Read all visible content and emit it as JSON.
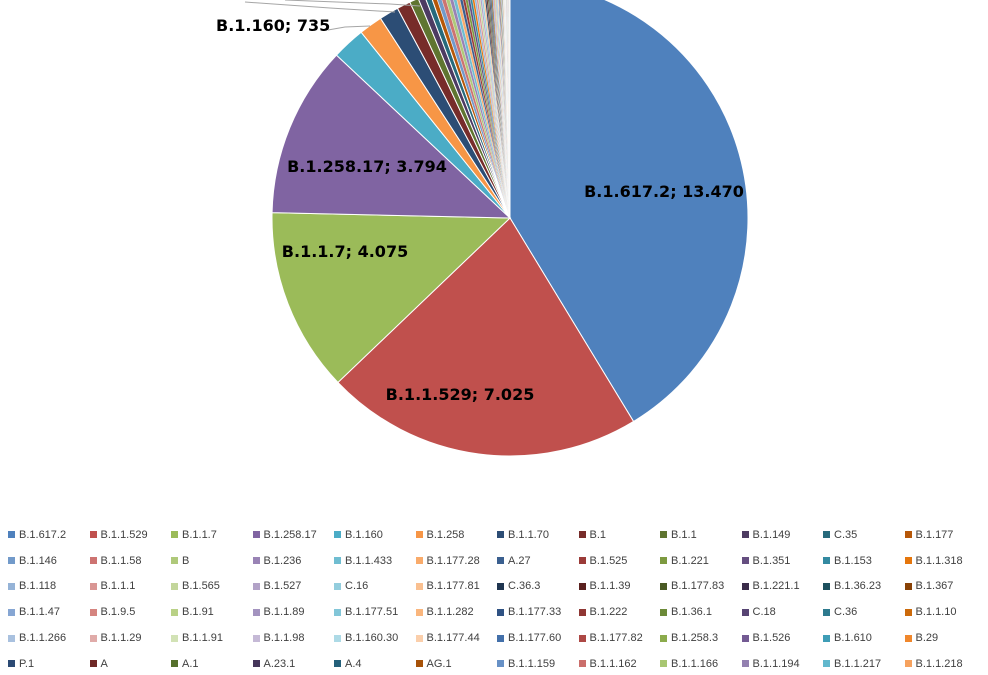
{
  "chart_data": {
    "type": "pie",
    "slices": [
      {
        "name": "B.1.617.2",
        "value": 13470,
        "color": "#4F81BD"
      },
      {
        "name": "B.1.1.529",
        "value": 7025,
        "color": "#C0504D"
      },
      {
        "name": "B.1.1.7",
        "value": 4075,
        "color": "#9BBB59"
      },
      {
        "name": "B.1.258.17",
        "value": 3794,
        "color": "#8064A2"
      },
      {
        "name": "B.1.160",
        "value": 735,
        "color": "#4BACC6"
      },
      {
        "name": "B.1.258",
        "value": 520,
        "color": "#F79646"
      },
      {
        "name": "B.1.1.70",
        "value": 430,
        "color": "#2C4D75"
      },
      {
        "name": "B.1",
        "value": 300,
        "color": "#772C2A"
      },
      {
        "name": "B.1.1",
        "value": 200,
        "color": "#5F7530"
      },
      {
        "name": "B.1.149",
        "value": 150,
        "color": "#4D3B62"
      },
      {
        "name": "C.35",
        "value": 130,
        "color": "#276A7C"
      },
      {
        "name": "B.1.177",
        "value": 110,
        "color": "#B65708"
      },
      {
        "name": "B.1.146",
        "value": 95,
        "color": "#729ACA"
      },
      {
        "name": "B.1.1.58",
        "value": 90,
        "color": "#CD7371"
      },
      {
        "name": "B",
        "value": 85,
        "color": "#AFC97A"
      },
      {
        "name": "B.1.236",
        "value": 80,
        "color": "#9983B5"
      },
      {
        "name": "B.1.1.433",
        "value": 75,
        "color": "#6FBDD1"
      },
      {
        "name": "B.1.177.28",
        "value": 70,
        "color": "#F9AB6B"
      },
      {
        "name": "A.27",
        "value": 65,
        "color": "#3A5F8F"
      },
      {
        "name": "B.1.525",
        "value": 60,
        "color": "#9B3B38"
      },
      {
        "name": "B.1.221",
        "value": 57,
        "color": "#7D9A40"
      },
      {
        "name": "B.1.351",
        "value": 54,
        "color": "#654E80"
      },
      {
        "name": "B.1.153",
        "value": 51,
        "color": "#338AA1"
      },
      {
        "name": "B.1.1.318",
        "value": 48,
        "color": "#E5760C"
      },
      {
        "name": "B.1.118",
        "value": 46,
        "color": "#95B3D7"
      },
      {
        "name": "B.1.1.1",
        "value": 44,
        "color": "#D99694"
      },
      {
        "name": "B.1.565",
        "value": 42,
        "color": "#C3D69B"
      },
      {
        "name": "B.1.527",
        "value": 40,
        "color": "#B2A2C7"
      },
      {
        "name": "C.16",
        "value": 38,
        "color": "#93CDDD"
      },
      {
        "name": "B.1.177.81",
        "value": 36,
        "color": "#FAC090"
      },
      {
        "name": "C.36.3",
        "value": 34,
        "color": "#1F3550"
      },
      {
        "name": "B.1.1.39",
        "value": 32,
        "color": "#5A211F"
      },
      {
        "name": "B.1.177.83",
        "value": 30,
        "color": "#4A5A24"
      },
      {
        "name": "B.1.221.1",
        "value": 29,
        "color": "#3A2C4A"
      },
      {
        "name": "B.1.36.23",
        "value": 28,
        "color": "#1D505E"
      },
      {
        "name": "B.1.367",
        "value": 27,
        "color": "#894206"
      },
      {
        "name": "B.1.1.47",
        "value": 26,
        "color": "#86A6D3"
      },
      {
        "name": "B.1.9.5",
        "value": 25,
        "color": "#D5847F"
      },
      {
        "name": "B.1.91",
        "value": 24,
        "color": "#B9D186"
      },
      {
        "name": "B.1.1.89",
        "value": 23,
        "color": "#A393BF"
      },
      {
        "name": "B.1.177.51",
        "value": 22,
        "color": "#82C6D8"
      },
      {
        "name": "B.1.1.282",
        "value": 21,
        "color": "#FAB67D"
      },
      {
        "name": "B.1.177.33",
        "value": 20,
        "color": "#2F5283"
      },
      {
        "name": "B.1.222",
        "value": 19,
        "color": "#8F3633"
      },
      {
        "name": "B.1.36.1",
        "value": 18,
        "color": "#6C8A38"
      },
      {
        "name": "C.18",
        "value": 17,
        "color": "#574473"
      },
      {
        "name": "C.36",
        "value": 16,
        "color": "#2D7A8E"
      },
      {
        "name": "B.1.1.10",
        "value": 15,
        "color": "#CC6A0A"
      },
      {
        "name": "B.1.1.266",
        "value": 14,
        "color": "#A9C1DF"
      },
      {
        "name": "B.1.1.29",
        "value": 13,
        "color": "#E0ABA9"
      },
      {
        "name": "B.1.1.91",
        "value": 12,
        "color": "#D2E2B5"
      },
      {
        "name": "B.1.1.98",
        "value": 11,
        "color": "#C5B9D6"
      },
      {
        "name": "B.1.160.30",
        "value": 10,
        "color": "#ADDAE6"
      },
      {
        "name": "B.1.177.44",
        "value": 10,
        "color": "#FBCFAB"
      },
      {
        "name": "B.1.177.60",
        "value": 9,
        "color": "#4370AA"
      },
      {
        "name": "B.1.177.82",
        "value": 9,
        "color": "#AD4845"
      },
      {
        "name": "B.1.258.3",
        "value": 8,
        "color": "#8CAB4C"
      },
      {
        "name": "B.1.526",
        "value": 8,
        "color": "#735A93"
      },
      {
        "name": "B.1.610",
        "value": 7,
        "color": "#3F9DB6"
      },
      {
        "name": "B.29",
        "value": 7,
        "color": "#F0872C"
      },
      {
        "name": "P.1",
        "value": 6,
        "color": "#2B4A74"
      },
      {
        "name": "A",
        "value": 6,
        "color": "#6E2826"
      },
      {
        "name": "A.1",
        "value": 5,
        "color": "#56702C"
      },
      {
        "name": "A.23.1",
        "value": 5,
        "color": "#45365A"
      },
      {
        "name": "A.4",
        "value": 4,
        "color": "#24607A"
      },
      {
        "name": "AG.1",
        "value": 4,
        "color": "#A75208"
      },
      {
        "name": "B.1.1.159",
        "value": 3,
        "color": "#6791C6"
      },
      {
        "name": "B.1.1.162",
        "value": 3,
        "color": "#CB6E6B"
      },
      {
        "name": "B.1.1.166",
        "value": 3,
        "color": "#A8C671"
      },
      {
        "name": "B.1.1.194",
        "value": 2,
        "color": "#9380B0"
      },
      {
        "name": "B.1.1.217",
        "value": 2,
        "color": "#62B8CD"
      },
      {
        "name": "B.1.1.218",
        "value": 2,
        "color": "#F6A25E"
      }
    ],
    "data_labels": [
      {
        "text": "B.1.617.2; 13.470",
        "slice": "B.1.617.2"
      },
      {
        "text": "B.1.1.529; 7.025",
        "slice": "B.1.1.529"
      },
      {
        "text": "B.1.1.7; 4.075",
        "slice": "B.1.1.7"
      },
      {
        "text": "B.1.258.17; 3.794",
        "slice": "B.1.258.17"
      },
      {
        "text": "B.1.160; 735",
        "slice": "B.1.160"
      }
    ],
    "legend_position": "bottom",
    "legend_columns": 12
  }
}
